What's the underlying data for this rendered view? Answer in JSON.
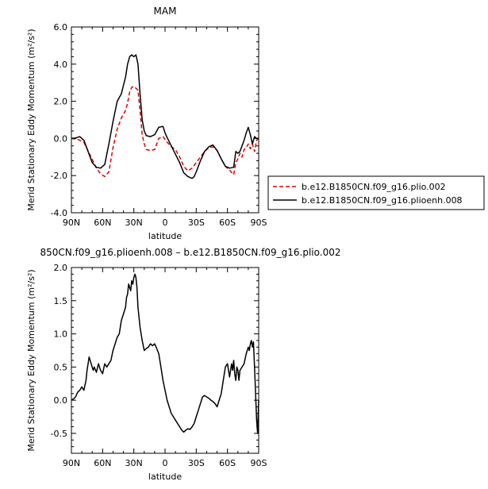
{
  "chart_data": [
    {
      "type": "line",
      "title": "MAM",
      "xlabel": "latitude",
      "ylabel": "Merid Stationary Eddy Momentum (m²/s²)",
      "xlim": [
        90,
        -90
      ],
      "ylim": [
        -4,
        6
      ],
      "x_ticks": [
        "90N",
        "60N",
        "30N",
        "0",
        "30S",
        "60S",
        "90S"
      ],
      "y_ticks": [
        "-4.0",
        "-2.0",
        "0.0",
        "2.0",
        "4.0",
        "6.0"
      ],
      "legend": "right",
      "series": [
        {
          "name": "b.e12.B1850CN.f09_g16.plio.002",
          "color": "#e00000",
          "dash": "dashed",
          "x": [
            90,
            84,
            78,
            72,
            66,
            62,
            58,
            54,
            50,
            46,
            42,
            38,
            36,
            34,
            32,
            30,
            28,
            26,
            24,
            22,
            20,
            18,
            14,
            10,
            6,
            2,
            0,
            -2,
            -6,
            -10,
            -14,
            -18,
            -22,
            -26,
            -30,
            -34,
            -38,
            -42,
            -46,
            -50,
            -54,
            -58,
            -62,
            -66,
            -68,
            -70,
            -72,
            -74,
            -76,
            -78,
            -80,
            -82,
            -84,
            -86,
            -88,
            -90
          ],
          "y": [
            0.0,
            -0.05,
            -0.2,
            -0.9,
            -1.6,
            -1.9,
            -2.05,
            -1.8,
            -0.5,
            0.5,
            1.1,
            1.5,
            1.9,
            2.5,
            2.75,
            2.8,
            2.7,
            2.6,
            1.5,
            0.2,
            -0.3,
            -0.6,
            -0.65,
            -0.6,
            0.0,
            0.1,
            -0.05,
            -0.2,
            -0.45,
            -0.6,
            -1.0,
            -1.5,
            -1.75,
            -1.6,
            -1.3,
            -1.0,
            -0.7,
            -0.5,
            -0.45,
            -0.65,
            -1.1,
            -1.5,
            -1.7,
            -1.95,
            -1.3,
            -1.1,
            -0.8,
            -1.0,
            -0.6,
            -0.5,
            -0.3,
            -0.55,
            -0.3,
            -0.7,
            -0.1,
            0.0
          ]
        },
        {
          "name": "b.e12.B1850CN.f09_g16.plioenh.008",
          "color": "#000000",
          "dash": "solid",
          "x": [
            90,
            86,
            82,
            78,
            74,
            70,
            66,
            62,
            58,
            54,
            50,
            46,
            42,
            38,
            36,
            34,
            32,
            30,
            28,
            26,
            24,
            22,
            20,
            18,
            14,
            10,
            6,
            2,
            0,
            -2,
            -6,
            -10,
            -14,
            -18,
            -22,
            -26,
            -28,
            -30,
            -34,
            -38,
            -42,
            -46,
            -50,
            -54,
            -58,
            -62,
            -66,
            -68,
            -70,
            -72,
            -74,
            -76,
            -78,
            -80,
            -82,
            -84,
            -86,
            -88,
            -90
          ],
          "y": [
            0.0,
            0.02,
            0.1,
            -0.1,
            -0.7,
            -1.3,
            -1.55,
            -1.6,
            -1.4,
            -0.3,
            0.9,
            2.0,
            2.4,
            3.3,
            4.0,
            4.4,
            4.5,
            4.4,
            4.5,
            4.0,
            2.4,
            1.0,
            0.4,
            0.15,
            0.1,
            0.2,
            0.6,
            0.65,
            0.3,
            0.05,
            -0.4,
            -0.85,
            -1.3,
            -1.85,
            -2.05,
            -2.15,
            -2.05,
            -1.8,
            -1.2,
            -0.7,
            -0.45,
            -0.35,
            -0.65,
            -1.1,
            -1.5,
            -1.6,
            -1.55,
            -0.7,
            -0.8,
            -0.7,
            -0.4,
            -0.1,
            0.3,
            0.6,
            0.2,
            -0.3,
            0.1,
            0.0,
            0.0
          ]
        }
      ]
    },
    {
      "type": "line",
      "title": "850CN.f09_g16.plioenh.008 – b.e12.B1850CN.f09_g16.plio.002",
      "xlabel": "latitude",
      "ylabel": "Merid Stationary Eddy Momentum (m²/s²)",
      "xlim": [
        90,
        -90
      ],
      "ylim": [
        -0.8,
        2.0
      ],
      "x_ticks": [
        "90N",
        "60N",
        "30N",
        "0",
        "30S",
        "60S",
        "90S"
      ],
      "y_ticks": [
        "-0.5",
        "0.0",
        "0.5",
        "1.0",
        "1.5",
        "2.0"
      ],
      "series": [
        {
          "color": "#000000",
          "dash": "solid",
          "x": [
            90,
            88,
            86,
            84,
            82,
            80,
            78,
            76,
            75,
            74,
            73,
            72,
            71,
            70,
            69,
            68,
            66,
            64,
            62,
            60,
            58,
            56,
            54,
            52,
            50,
            48,
            46,
            44,
            42,
            40,
            38,
            37,
            36,
            35,
            34,
            33,
            32,
            31,
            30,
            29,
            28,
            27,
            26,
            24,
            22,
            20,
            18,
            16,
            14,
            12,
            10,
            8,
            6,
            4,
            2,
            0,
            -2,
            -4,
            -6,
            -8,
            -10,
            -12,
            -14,
            -16,
            -18,
            -20,
            -22,
            -24,
            -26,
            -28,
            -30,
            -32,
            -34,
            -36,
            -38,
            -40,
            -42,
            -44,
            -46,
            -48,
            -50,
            -52,
            -54,
            -56,
            -58,
            -60,
            -62,
            -64,
            -65,
            -66,
            -67,
            -68,
            -69,
            -70,
            -71,
            -72,
            -74,
            -76,
            -78,
            -80,
            -81,
            -82,
            -83,
            -84,
            -85,
            -86,
            -87,
            -88,
            -89,
            -90
          ],
          "y": [
            0.0,
            0.02,
            0.05,
            0.12,
            0.15,
            0.2,
            0.15,
            0.3,
            0.45,
            0.55,
            0.65,
            0.6,
            0.55,
            0.5,
            0.45,
            0.5,
            0.42,
            0.55,
            0.45,
            0.4,
            0.55,
            0.5,
            0.55,
            0.6,
            0.75,
            0.85,
            0.95,
            1.0,
            1.2,
            1.3,
            1.4,
            1.55,
            1.6,
            1.75,
            1.7,
            1.65,
            1.8,
            1.75,
            1.85,
            1.9,
            1.85,
            1.7,
            1.4,
            1.1,
            0.9,
            0.75,
            0.78,
            0.8,
            0.85,
            0.82,
            0.85,
            0.78,
            0.7,
            0.5,
            0.3,
            0.15,
            0.0,
            -0.1,
            -0.2,
            -0.25,
            -0.3,
            -0.35,
            -0.4,
            -0.45,
            -0.48,
            -0.45,
            -0.43,
            -0.44,
            -0.4,
            -0.35,
            -0.25,
            -0.15,
            -0.05,
            0.05,
            0.07,
            0.05,
            0.03,
            0.0,
            -0.02,
            -0.05,
            -0.1,
            0.0,
            0.1,
            0.3,
            0.5,
            0.55,
            0.35,
            0.55,
            0.45,
            0.6,
            0.4,
            0.3,
            0.5,
            0.45,
            0.3,
            0.45,
            0.5,
            0.55,
            0.7,
            0.8,
            0.75,
            0.85,
            0.9,
            0.8,
            0.88,
            0.5,
            0.1,
            -0.3,
            -0.5,
            0.0
          ]
        }
      ]
    }
  ]
}
